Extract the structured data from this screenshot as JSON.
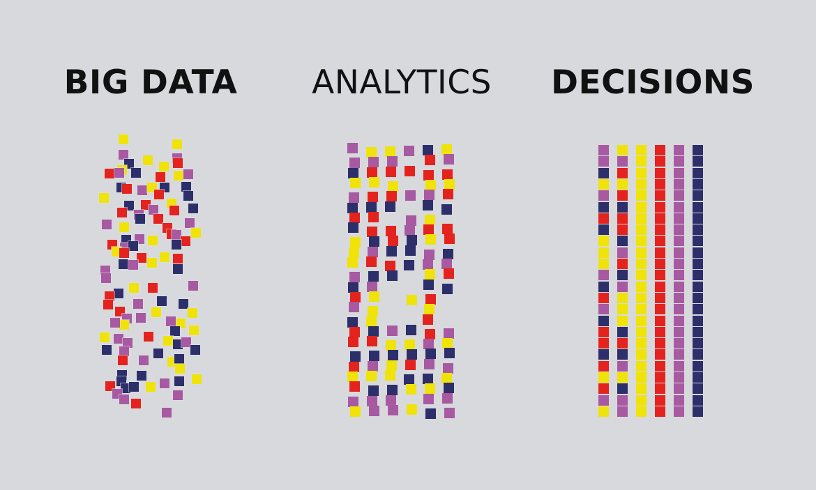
{
  "colors": {
    "background": "#D8D9DD",
    "text": "#111111"
  },
  "palette": {
    "Y": "#EFE30A",
    "R": "#E4231E",
    "P": "#A75AA1",
    "N": "#2C2F69"
  },
  "titles": [
    {
      "text": "BIG DATA",
      "bold": true
    },
    {
      "text": "ANALYTICS",
      "bold": false
    },
    {
      "text": "DECISIONS",
      "bold": true
    }
  ],
  "big_data_scatter": {
    "square_count": 111,
    "squares": [
      [
        35,
        8,
        "Y"
      ],
      [
        112,
        15,
        "Y"
      ],
      [
        35,
        30,
        "P"
      ],
      [
        70,
        38,
        "Y"
      ],
      [
        112,
        35,
        "P"
      ],
      [
        43,
        43,
        "N"
      ],
      [
        113,
        42,
        "R"
      ],
      [
        93,
        47,
        "Y"
      ],
      [
        33,
        52,
        "Y"
      ],
      [
        15,
        57,
        "R"
      ],
      [
        29,
        56,
        "P"
      ],
      [
        53,
        56,
        "N"
      ],
      [
        88,
        62,
        "R"
      ],
      [
        114,
        60,
        "Y"
      ],
      [
        128,
        58,
        "P"
      ],
      [
        32,
        77,
        "N"
      ],
      [
        40,
        79,
        "R"
      ],
      [
        62,
        81,
        "P"
      ],
      [
        76,
        77,
        "Y"
      ],
      [
        94,
        77,
        "N"
      ],
      [
        86,
        87,
        "R"
      ],
      [
        125,
        76,
        "N"
      ],
      [
        128,
        89,
        "N"
      ],
      [
        7,
        92,
        "Y"
      ],
      [
        104,
        100,
        "Y"
      ],
      [
        43,
        103,
        "N"
      ],
      [
        67,
        102,
        "R"
      ],
      [
        108,
        110,
        "R"
      ],
      [
        135,
        107,
        "N"
      ],
      [
        78,
        109,
        "P"
      ],
      [
        33,
        113,
        "R"
      ],
      [
        57,
        116,
        "P"
      ],
      [
        59,
        122,
        "N"
      ],
      [
        85,
        122,
        "R"
      ],
      [
        130,
        128,
        "P"
      ],
      [
        11,
        130,
        "P"
      ],
      [
        98,
        135,
        "R"
      ],
      [
        36,
        134,
        "Y"
      ],
      [
        104,
        144,
        "R"
      ],
      [
        111,
        145,
        "P"
      ],
      [
        139,
        142,
        "Y"
      ],
      [
        39,
        152,
        "N"
      ],
      [
        58,
        151,
        "P"
      ],
      [
        124,
        154,
        "R"
      ],
      [
        77,
        153,
        "Y"
      ],
      [
        19,
        159,
        "R"
      ],
      [
        37,
        163,
        "P"
      ],
      [
        49,
        161,
        "N"
      ],
      [
        111,
        159,
        "N"
      ],
      [
        25,
        169,
        "Y"
      ],
      [
        36,
        171,
        "R"
      ],
      [
        94,
        177,
        "Y"
      ],
      [
        113,
        179,
        "R"
      ],
      [
        61,
        178,
        "R"
      ],
      [
        76,
        185,
        "Y"
      ],
      [
        9,
        196,
        "P"
      ],
      [
        35,
        187,
        "N"
      ],
      [
        49,
        188,
        "P"
      ],
      [
        113,
        194,
        "N"
      ],
      [
        10,
        207,
        "P"
      ],
      [
        50,
        221,
        "Y"
      ],
      [
        77,
        221,
        "R"
      ],
      [
        135,
        218,
        "P"
      ],
      [
        28,
        229,
        "N"
      ],
      [
        15,
        233,
        "R"
      ],
      [
        13,
        245,
        "R"
      ],
      [
        90,
        240,
        "N"
      ],
      [
        121,
        244,
        "N"
      ],
      [
        56,
        244,
        "P"
      ],
      [
        30,
        255,
        "R"
      ],
      [
        82,
        256,
        "Y"
      ],
      [
        134,
        257,
        "Y"
      ],
      [
        40,
        265,
        "P"
      ],
      [
        60,
        264,
        "P"
      ],
      [
        117,
        272,
        "Y"
      ],
      [
        103,
        269,
        "P"
      ],
      [
        36,
        274,
        "Y"
      ],
      [
        109,
        283,
        "N"
      ],
      [
        136,
        282,
        "Y"
      ],
      [
        23,
        271,
        "P"
      ],
      [
        8,
        292,
        "Y"
      ],
      [
        28,
        294,
        "P"
      ],
      [
        41,
        300,
        "P"
      ],
      [
        71,
        291,
        "R"
      ],
      [
        99,
        297,
        "Y"
      ],
      [
        113,
        302,
        "N"
      ],
      [
        125,
        299,
        "P"
      ],
      [
        11,
        310,
        "N"
      ],
      [
        36,
        312,
        "P"
      ],
      [
        85,
        315,
        "N"
      ],
      [
        138,
        310,
        "N"
      ],
      [
        34,
        325,
        "R"
      ],
      [
        64,
        325,
        "P"
      ],
      [
        105,
        327,
        "Y"
      ],
      [
        115,
        323,
        "N"
      ],
      [
        116,
        337,
        "Y"
      ],
      [
        33,
        346,
        "N"
      ],
      [
        61,
        347,
        "N"
      ],
      [
        140,
        352,
        "Y"
      ],
      [
        16,
        362,
        "R"
      ],
      [
        32,
        355,
        "N"
      ],
      [
        38,
        365,
        "N"
      ],
      [
        50,
        363,
        "N"
      ],
      [
        74,
        363,
        "Y"
      ],
      [
        94,
        358,
        "P"
      ],
      [
        115,
        355,
        "N"
      ],
      [
        26,
        373,
        "P"
      ],
      [
        113,
        375,
        "P"
      ],
      [
        36,
        381,
        "P"
      ],
      [
        53,
        387,
        "R"
      ],
      [
        97,
        400,
        "P"
      ]
    ]
  },
  "analytics_grid": {
    "rows": 24,
    "cols": 6,
    "gap_char": ".",
    "columns": [
      "PPNYPNRNYYYPNRPNRRNRYRPY",
      "YPRYRNRRNPRNPYYYNRNPYNPP",
      "YPRYRN.RRNRN....PYNYYNPP",
      "P.R.P.PPNNN..Y..NYNRNY.Y",
      "NRRYPNYRYPPYNRYRRPNPNYPN",
      "YPRYRN.RRNPRN...PYNPYNPP"
    ]
  },
  "decisions_grid": {
    "rows": 24,
    "cols": 6,
    "gap_char": ".",
    "columns": [
      "PPNYPNRNYYYPNRPNRRNRYRPY",
      "YPRYRNRRNPRNPYYYNRNPYNPP",
      "YYYYYYYYYYYYYYYYYYYYYYYY",
      "RRRRRRRRRRRRRRRRRRRRRRRR",
      "PPPPPPPPPPPPPPPPPPPPPPPP",
      "NNNNNNNNNNNNNNNNNNNNNNNN"
    ]
  }
}
